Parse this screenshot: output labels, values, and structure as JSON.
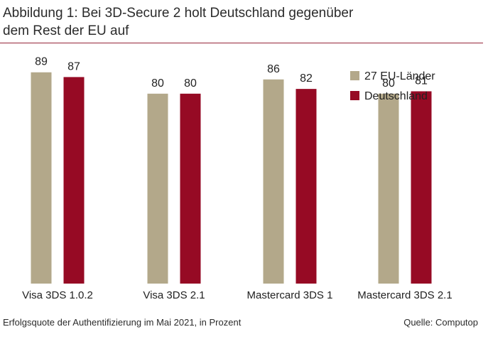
{
  "header": {
    "title_line1": "Abbildung 1: Bei 3D-Secure 2 holt Deutschland gegenüber",
    "title_line2": "dem Rest der EU auf"
  },
  "footer": {
    "caption": "Erfolgsquote der Authentifizierung im Mai 2021, in Prozent",
    "source": "Quelle: Computop"
  },
  "colors": {
    "eu": "#b3a88a",
    "de": "#960a24",
    "rule": "#96263a"
  },
  "chart_data": {
    "type": "bar",
    "title": "Abbildung 1: Bei 3D-Secure 2 holt Deutschland gegenüber dem Rest der EU auf",
    "categories": [
      "Visa 3DS 1.0.2",
      "Visa 3DS 2.1",
      "Mastercard 3DS 1",
      "Mastercard 3DS 2.1"
    ],
    "series": [
      {
        "name": "27 EU-Länder",
        "values": [
          89,
          80,
          86,
          80
        ]
      },
      {
        "name": "Deutschland",
        "values": [
          87,
          80,
          82,
          81
        ]
      }
    ],
    "legend_position": "top-right",
    "grid": false,
    "data_labels": true
  }
}
